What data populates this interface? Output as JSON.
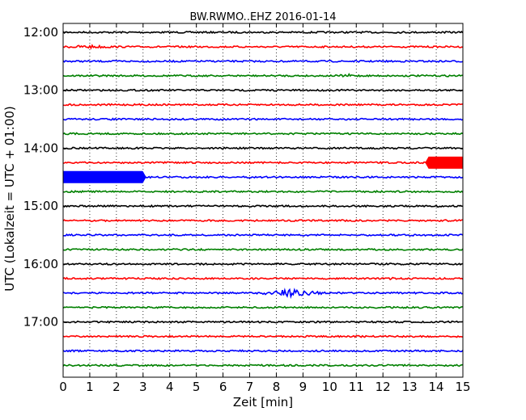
{
  "chart_data": {
    "type": "line",
    "title": "BW.RWMO..EHZ 2016-01-14",
    "xlabel": "Zeit  [min]",
    "ylabel": "UTC (Lokalzeit = UTC + 01:00)",
    "xlim": [
      0,
      15
    ],
    "x_ticks": [
      "0",
      "1",
      "2",
      "3",
      "4",
      "5",
      "6",
      "7",
      "8",
      "9",
      "10",
      "11",
      "12",
      "13",
      "14",
      "15"
    ],
    "y_tick_labels": [
      "12:00",
      "13:00",
      "14:00",
      "15:00",
      "16:00",
      "17:00"
    ],
    "trace_start": "12:00",
    "trace_end": "17:45",
    "trace_interval_min": 15,
    "trace_colors": [
      "#000000",
      "#ff0000",
      "#0000ff",
      "#008000"
    ],
    "grid": "vertical dotted lines at each minute",
    "events": [
      {
        "trace": "12:15",
        "x_start": 0.0,
        "x_end": 2.0,
        "amplitude": "small"
      },
      {
        "trace": "12:45",
        "x_start": 10.3,
        "x_end": 11.2,
        "amplitude": "small"
      },
      {
        "trace": "14:15",
        "x_start": 13.6,
        "x_end": 15.0,
        "amplitude": "saturated"
      },
      {
        "trace": "14:30",
        "x_start": 0.0,
        "x_end": 3.1,
        "amplitude": "saturated"
      },
      {
        "trace": "16:15",
        "x_start": 12.2,
        "x_end": 12.5,
        "amplitude": "small"
      },
      {
        "trace": "16:30",
        "x_start": 7.2,
        "x_end": 9.9,
        "amplitude": "medium"
      }
    ]
  }
}
